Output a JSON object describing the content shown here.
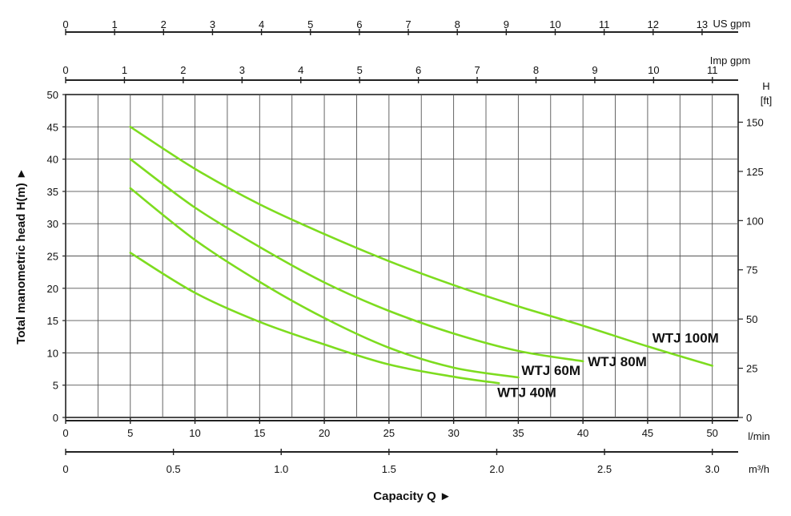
{
  "chart_data": {
    "type": "line",
    "xlabel": "Capacity Q",
    "ylabel": "Total manometric head H(m)",
    "xlim": [
      0,
      52
    ],
    "ylim": [
      0,
      50
    ],
    "x_unit": "l/min",
    "x_ticks": [
      0,
      5,
      10,
      15,
      20,
      25,
      30,
      35,
      40,
      45,
      50
    ],
    "y_ticks": [
      0,
      5,
      10,
      15,
      20,
      25,
      30,
      35,
      40,
      45,
      50
    ],
    "right_axis": {
      "label": "H",
      "unit": "[ft]",
      "ticks": [
        0,
        25,
        50,
        75,
        100,
        125,
        150
      ]
    },
    "secondary_x_axes": [
      {
        "unit": "US gpm",
        "ticks": [
          0,
          1,
          2,
          3,
          4,
          5,
          6,
          7,
          8,
          9,
          10,
          11,
          12,
          13
        ]
      },
      {
        "unit": "Imp gpm",
        "ticks": [
          0,
          1,
          2,
          3,
          4,
          5,
          6,
          7,
          8,
          9,
          10,
          11
        ]
      },
      {
        "unit": "m³/h",
        "ticks": [
          "0",
          "0.5",
          "1.0",
          "1.5",
          "2.0",
          "2.5",
          "3.0"
        ]
      }
    ],
    "grid": true,
    "series": [
      {
        "name": "WTJ 100M",
        "color": "#7ddc1f",
        "x": [
          5,
          10,
          15,
          20,
          25,
          30,
          35,
          40,
          45,
          50
        ],
        "y": [
          45,
          38.5,
          33,
          28.4,
          24.2,
          20.5,
          17.2,
          14.2,
          11,
          8
        ]
      },
      {
        "name": "WTJ 80M",
        "color": "#7ddc1f",
        "x": [
          5,
          10,
          15,
          20,
          25,
          30,
          35,
          40
        ],
        "y": [
          40,
          32.5,
          26.4,
          20.9,
          16.5,
          13,
          10.3,
          8.7
        ]
      },
      {
        "name": "WTJ 60M",
        "color": "#7ddc1f",
        "x": [
          5,
          10,
          15,
          20,
          25,
          30,
          35
        ],
        "y": [
          35.5,
          27.5,
          21,
          15.4,
          10.8,
          7.7,
          6.2
        ]
      },
      {
        "name": "WTJ 40M",
        "color": "#7ddc1f",
        "x": [
          5,
          10,
          15,
          20,
          25,
          30,
          33.5
        ],
        "y": [
          25.5,
          19.3,
          14.8,
          11.3,
          8.2,
          6.3,
          5.3
        ]
      }
    ]
  }
}
